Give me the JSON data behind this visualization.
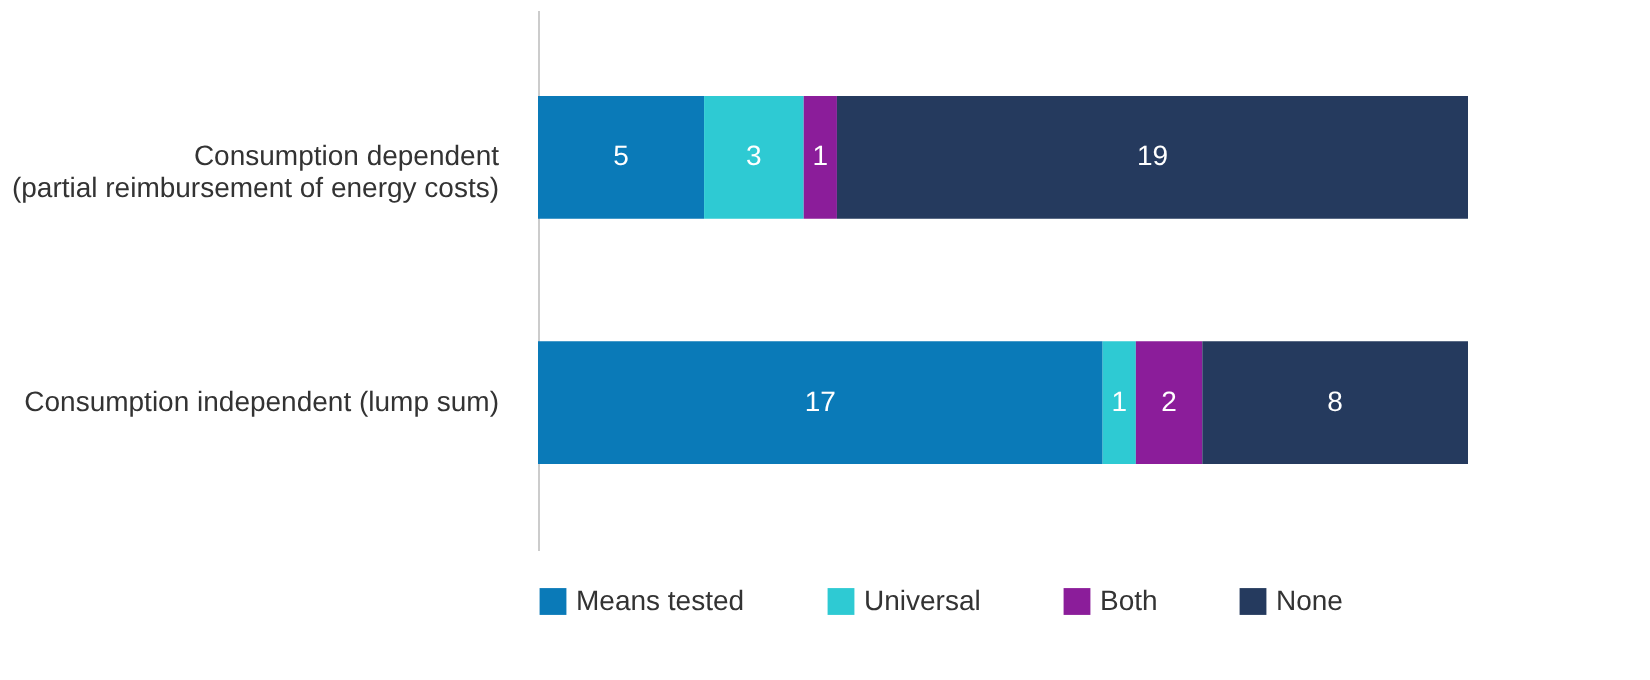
{
  "chart_data": {
    "type": "bar",
    "orientation": "horizontal",
    "stacked": true,
    "data_labels": true,
    "legend": "bottom",
    "grid": false,
    "categories": [
      "Consumption dependent\n(partial reimbursement of energy costs)",
      "Consumption independent (lump sum)"
    ],
    "series": [
      {
        "name": "Means tested",
        "color": "#0a7ab8",
        "values": [
          5,
          17
        ]
      },
      {
        "name": "Universal",
        "color": "#2ecad3",
        "values": [
          3,
          1
        ]
      },
      {
        "name": "Both",
        "color": "#8b1d9a",
        "values": [
          1,
          2
        ]
      },
      {
        "name": "None",
        "color": "#253a5e",
        "values": [
          19,
          8
        ]
      }
    ]
  }
}
